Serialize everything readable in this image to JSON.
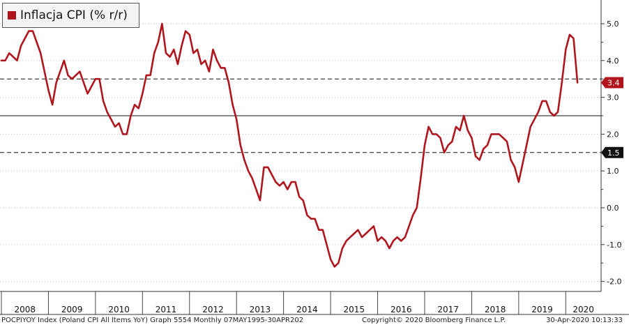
{
  "legend": {
    "label": "Inflacja CPI (% r/r)"
  },
  "footer": {
    "left": "POCPIYOY Index (Poland CPI All Items YoY) Graph 5554  Monthly 07MAY1995-30APR202",
    "middle": "Copyright© 2020 Bloomberg Finance L.P.",
    "right": "30-Apr-2020 10:13:33"
  },
  "colors": {
    "series": "#b0151e",
    "current_tag": "#b0151e",
    "target_tag": "#111111"
  },
  "chart_data": {
    "type": "line",
    "title": "",
    "xlabel": "",
    "ylabel": "",
    "ylim": [
      -2.2,
      5.6
    ],
    "yticks": [
      "5.0",
      "4.0",
      "3.0",
      "2.0",
      "1.0",
      "0.0",
      "-1.0",
      "-2.0"
    ],
    "ytick_values": [
      5,
      4,
      3,
      2,
      1,
      0,
      -1,
      -2
    ],
    "year_labels": [
      "2008",
      "2009",
      "2010",
      "2011",
      "2012",
      "2013",
      "2014",
      "2015",
      "2016",
      "2017",
      "2018",
      "2019",
      "2020"
    ],
    "grid": "horizontal dotted",
    "reference_lines": [
      {
        "value": 3.5,
        "style": "dashed"
      },
      {
        "value": 2.5,
        "style": "solid"
      },
      {
        "value": 1.5,
        "style": "dashed"
      }
    ],
    "tags": [
      {
        "label": "3.4",
        "value": 3.4,
        "style": "current"
      },
      {
        "label": "1.5",
        "value": 1.5,
        "style": "target"
      }
    ],
    "series": [
      {
        "name": "Inflacja CPI (% r/r)",
        "x": [
          "2008-01",
          "2008-02",
          "2008-03",
          "2008-04",
          "2008-05",
          "2008-06",
          "2008-07",
          "2008-08",
          "2008-09",
          "2008-10",
          "2008-11",
          "2008-12",
          "2009-01",
          "2009-02",
          "2009-03",
          "2009-04",
          "2009-05",
          "2009-06",
          "2009-07",
          "2009-08",
          "2009-09",
          "2009-10",
          "2009-11",
          "2009-12",
          "2010-01",
          "2010-02",
          "2010-03",
          "2010-04",
          "2010-05",
          "2010-06",
          "2010-07",
          "2010-08",
          "2010-09",
          "2010-10",
          "2010-11",
          "2010-12",
          "2011-01",
          "2011-02",
          "2011-03",
          "2011-04",
          "2011-05",
          "2011-06",
          "2011-07",
          "2011-08",
          "2011-09",
          "2011-10",
          "2011-11",
          "2011-12",
          "2012-01",
          "2012-02",
          "2012-03",
          "2012-04",
          "2012-05",
          "2012-06",
          "2012-07",
          "2012-08",
          "2012-09",
          "2012-10",
          "2012-11",
          "2012-12",
          "2013-01",
          "2013-02",
          "2013-03",
          "2013-04",
          "2013-05",
          "2013-06",
          "2013-07",
          "2013-08",
          "2013-09",
          "2013-10",
          "2013-11",
          "2013-12",
          "2014-01",
          "2014-02",
          "2014-03",
          "2014-04",
          "2014-05",
          "2014-06",
          "2014-07",
          "2014-08",
          "2014-09",
          "2014-10",
          "2014-11",
          "2014-12",
          "2015-01",
          "2015-02",
          "2015-03",
          "2015-04",
          "2015-05",
          "2015-06",
          "2015-07",
          "2015-08",
          "2015-09",
          "2015-10",
          "2015-11",
          "2015-12",
          "2016-01",
          "2016-02",
          "2016-03",
          "2016-04",
          "2016-05",
          "2016-06",
          "2016-07",
          "2016-08",
          "2016-09",
          "2016-10",
          "2016-11",
          "2016-12",
          "2017-01",
          "2017-02",
          "2017-03",
          "2017-04",
          "2017-05",
          "2017-06",
          "2017-07",
          "2017-08",
          "2017-09",
          "2017-10",
          "2017-11",
          "2017-12",
          "2018-01",
          "2018-02",
          "2018-03",
          "2018-04",
          "2018-05",
          "2018-06",
          "2018-07",
          "2018-08",
          "2018-09",
          "2018-10",
          "2018-11",
          "2018-12",
          "2019-01",
          "2019-02",
          "2019-03",
          "2019-04",
          "2019-05",
          "2019-06",
          "2019-07",
          "2019-08",
          "2019-09",
          "2019-10",
          "2019-11",
          "2019-12",
          "2020-01",
          "2020-02",
          "2020-03",
          "2020-04"
        ],
        "values": [
          4.0,
          4.0,
          4.2,
          4.1,
          4.0,
          4.4,
          4.6,
          4.8,
          4.8,
          4.5,
          4.2,
          3.7,
          3.2,
          2.8,
          3.4,
          3.7,
          4.0,
          3.6,
          3.5,
          3.6,
          3.7,
          3.4,
          3.1,
          3.3,
          3.5,
          3.5,
          2.9,
          2.6,
          2.4,
          2.2,
          2.3,
          2.0,
          2.0,
          2.5,
          2.8,
          2.7,
          3.1,
          3.6,
          3.6,
          4.2,
          4.5,
          5.0,
          4.2,
          4.1,
          4.3,
          3.9,
          4.4,
          4.8,
          4.7,
          4.2,
          4.3,
          3.9,
          4.0,
          3.7,
          4.3,
          4.0,
          3.8,
          3.8,
          3.4,
          2.8,
          2.4,
          1.7,
          1.3,
          1.0,
          0.8,
          0.5,
          0.2,
          1.1,
          1.1,
          0.9,
          0.7,
          0.6,
          0.7,
          0.5,
          0.7,
          0.7,
          0.3,
          0.2,
          -0.2,
          -0.3,
          -0.3,
          -0.6,
          -0.6,
          -1.0,
          -1.4,
          -1.6,
          -1.5,
          -1.1,
          -0.9,
          -0.8,
          -0.7,
          -0.6,
          -0.8,
          -0.7,
          -0.6,
          -0.5,
          -0.9,
          -0.8,
          -0.9,
          -1.1,
          -0.9,
          -0.8,
          -0.9,
          -0.8,
          -0.5,
          -0.2,
          0.0,
          0.8,
          1.7,
          2.2,
          2.0,
          2.0,
          1.9,
          1.5,
          1.7,
          1.8,
          2.2,
          2.1,
          2.5,
          2.1,
          1.9,
          1.4,
          1.3,
          1.6,
          1.7,
          2.0,
          2.0,
          2.0,
          1.9,
          1.8,
          1.3,
          1.1,
          0.7,
          1.2,
          1.7,
          2.2,
          2.4,
          2.6,
          2.9,
          2.9,
          2.6,
          2.5,
          2.6,
          3.4,
          4.3,
          4.7,
          4.6,
          3.4
        ]
      }
    ]
  }
}
